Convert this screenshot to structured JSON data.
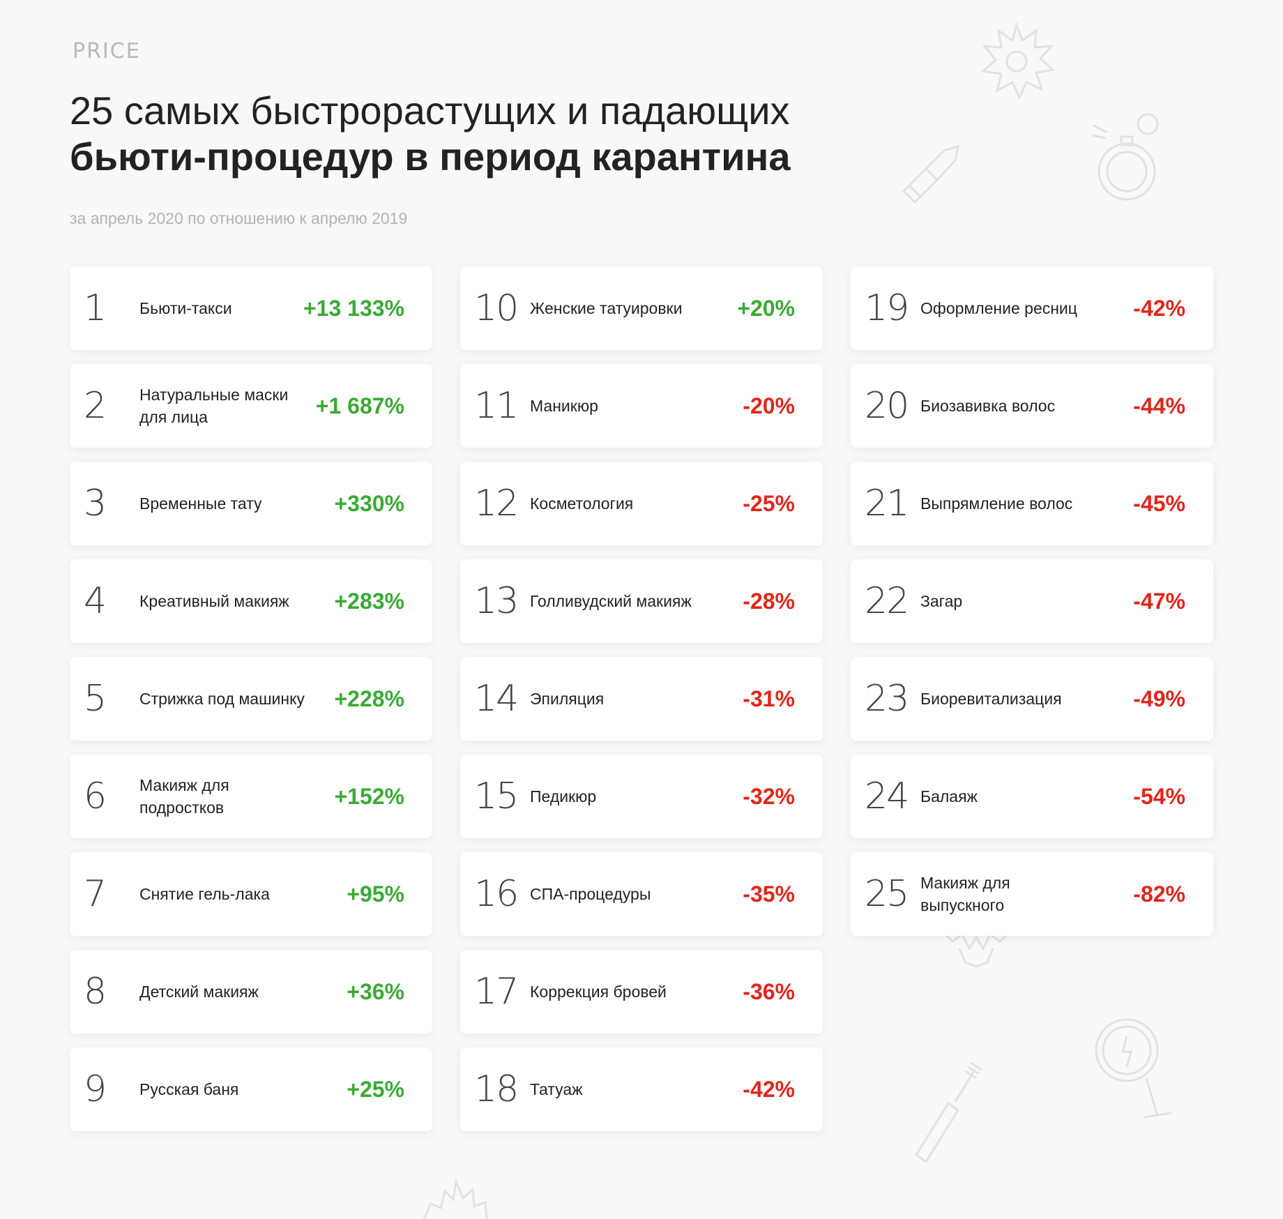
{
  "logo": "PRICE",
  "title": {
    "line1": "25 самых быстрорастущих и падающих",
    "line2": "бьюти-процедур в период карантина"
  },
  "subtitle": "за апрель 2020 по отношению к апрелю 2019",
  "colors": {
    "positive": "#3aaa35",
    "negative": "#e1251b",
    "background": "#f8f8f8",
    "card": "#ffffff"
  },
  "items": [
    {
      "rank": "1",
      "name": "Бьюти-такси",
      "value": "+13 133%",
      "trend": "up"
    },
    {
      "rank": "2",
      "name": "Натуральные маски для лица",
      "value": "+1 687%",
      "trend": "up"
    },
    {
      "rank": "3",
      "name": "Временные тату",
      "value": "+330%",
      "trend": "up"
    },
    {
      "rank": "4",
      "name": "Креативный макияж",
      "value": "+283%",
      "trend": "up"
    },
    {
      "rank": "5",
      "name": "Стрижка под машинку",
      "value": "+228%",
      "trend": "up"
    },
    {
      "rank": "6",
      "name": "Макияж для подростков",
      "value": "+152%",
      "trend": "up"
    },
    {
      "rank": "7",
      "name": "Снятие гель-лака",
      "value": "+95%",
      "trend": "up"
    },
    {
      "rank": "8",
      "name": "Детский макияж",
      "value": "+36%",
      "trend": "up"
    },
    {
      "rank": "9",
      "name": "Русская баня",
      "value": "+25%",
      "trend": "up"
    },
    {
      "rank": "10",
      "name": "Женские татуировки",
      "value": "+20%",
      "trend": "up"
    },
    {
      "rank": "11",
      "name": "Маникюр",
      "value": "-20%",
      "trend": "down"
    },
    {
      "rank": "12",
      "name": "Косметология",
      "value": "-25%",
      "trend": "down"
    },
    {
      "rank": "13",
      "name": "Голливудский макияж",
      "value": "-28%",
      "trend": "down"
    },
    {
      "rank": "14",
      "name": "Эпиляция",
      "value": "-31%",
      "trend": "down"
    },
    {
      "rank": "15",
      "name": "Педикюр",
      "value": "-32%",
      "trend": "down"
    },
    {
      "rank": "16",
      "name": "СПА-процедуры",
      "value": "-35%",
      "trend": "down"
    },
    {
      "rank": "17",
      "name": "Коррекция бровей",
      "value": "-36%",
      "trend": "down"
    },
    {
      "rank": "18",
      "name": "Татуаж",
      "value": "-42%",
      "trend": "down"
    },
    {
      "rank": "19",
      "name": "Оформление ресниц",
      "value": "-42%",
      "trend": "down"
    },
    {
      "rank": "20",
      "name": "Биозавивка волос",
      "value": "-44%",
      "trend": "down"
    },
    {
      "rank": "21",
      "name": "Выпрямление волос",
      "value": "-45%",
      "trend": "down"
    },
    {
      "rank": "22",
      "name": "Загар",
      "value": "-47%",
      "trend": "down"
    },
    {
      "rank": "23",
      "name": "Биоревитализация",
      "value": "-49%",
      "trend": "down"
    },
    {
      "rank": "24",
      "name": "Балаяж",
      "value": "-54%",
      "trend": "down"
    },
    {
      "rank": "25",
      "name": "Макияж для выпускного",
      "value": "-82%",
      "trend": "down"
    }
  ],
  "decor_icons": [
    "flower-icon",
    "lipstick-icon",
    "perfume-icon",
    "mascara-icon",
    "mirror-icon"
  ]
}
